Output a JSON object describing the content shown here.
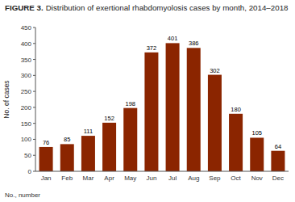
{
  "chart_data": {
    "type": "bar",
    "title": "FIGURE 3.",
    "subtitle": "Distribution of exertional rhabdomyolosis cases by month, 2014–2018",
    "ylabel": "No. of cases",
    "annotations": [
      "No., number"
    ],
    "categories": [
      "Jan",
      "Feb",
      "Mar",
      "Apr",
      "May",
      "Jun",
      "Jul",
      "Aug",
      "Sep",
      "Oct",
      "Nov",
      "Dec"
    ],
    "values": [
      76,
      85,
      111,
      152,
      198,
      372,
      401,
      386,
      302,
      180,
      105,
      64
    ],
    "color": "#8B2500",
    "ylim": [
      0,
      450
    ],
    "yticks": [
      0,
      50,
      100,
      150,
      200,
      250,
      300,
      350,
      400,
      450
    ],
    "grid": false,
    "data_labels": true
  }
}
